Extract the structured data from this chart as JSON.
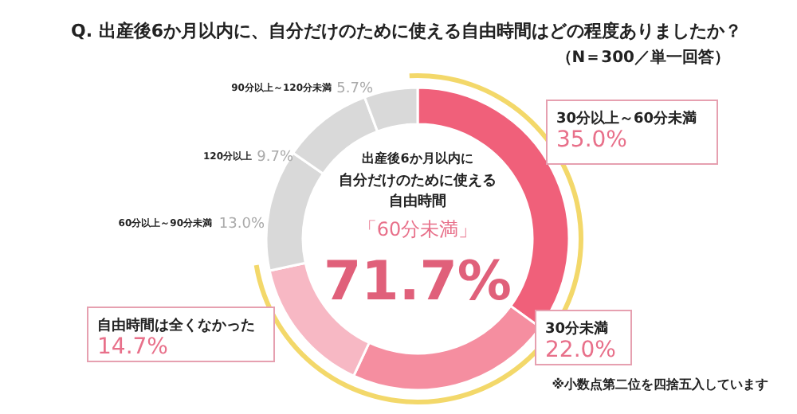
{
  "chart_data": {
    "type": "donut",
    "title": "Q. 出産後6か月以内に、自分だけのために使える自由時間はどの程度ありましたか？",
    "subtitle": "（N＝300／単一回答）",
    "categories": [
      "30分以上～60分未満",
      "30分未満",
      "自由時間は全くなかった",
      "60分以上～90分未満",
      "120分以上",
      "90分以上～120分未満"
    ],
    "values": [
      35.0,
      22.0,
      14.7,
      13.0,
      9.7,
      5.7
    ],
    "value_labels": [
      "35.0%",
      "22.0%",
      "14.7%",
      "13.0%",
      "9.7%",
      "5.7%"
    ],
    "colors": [
      "#f0607a",
      "#f58ea0",
      "#f7b8c4",
      "#d9d9d9",
      "#d9d9d9",
      "#d9d9d9"
    ],
    "annotations": [
      "出産後6か月以内に",
      "自分だけのために使える",
      "自由時間",
      "「60分未満」",
      "71.7%",
      "※小数点第二位を四捨五入しています"
    ]
  }
}
